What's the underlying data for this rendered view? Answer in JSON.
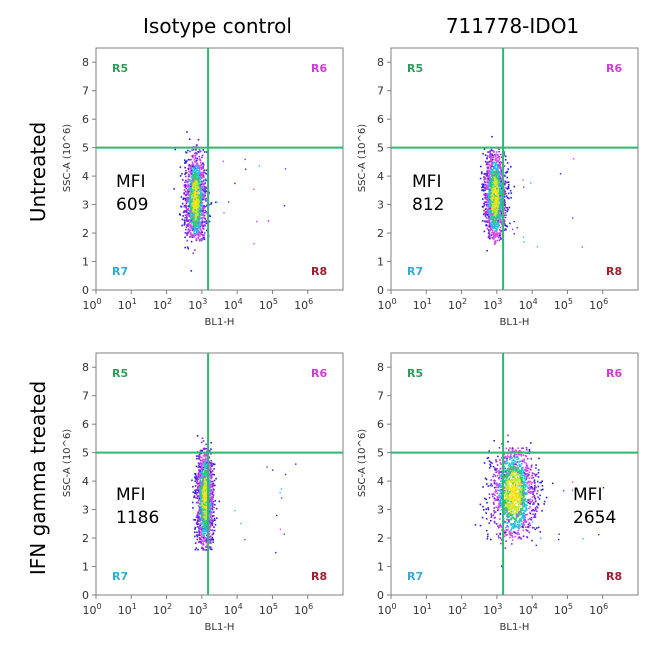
{
  "column_titles": [
    "Isotype control",
    "711778-IDO1"
  ],
  "row_titles": [
    "Untreated",
    "IFN gamma treated"
  ],
  "colors": {
    "frame": "#7f7f7f",
    "gate_line": "#2eb872",
    "R5": "#2e9e5b",
    "R6": "#d43ad8",
    "R7": "#35a8d6",
    "R8": "#a01e2d",
    "density": [
      "#2b1fd8",
      "#8a2be2",
      "#d946ef",
      "#22c3e0",
      "#2ecc71",
      "#c8e62a",
      "#ffe11a"
    ]
  },
  "chart_data": [
    {
      "type": "scatter",
      "title": "",
      "xlabel": "BL1-H",
      "ylabel": "SSC-A (10^6)",
      "x_scale": "log",
      "x_ticks": [
        "10^0",
        "10^1",
        "10^2",
        "10^3",
        "10^4",
        "10^5",
        "10^6"
      ],
      "xlim": [
        1,
        10000000
      ],
      "ylim": [
        0,
        8.5
      ],
      "y_ticks": [
        0,
        1,
        2,
        3,
        4,
        5,
        6,
        7,
        8
      ],
      "gate": {
        "x": 1500,
        "y": 5
      },
      "quadrants": [
        "R5",
        "R6",
        "R7",
        "R8"
      ],
      "annotation": {
        "label": "MFI",
        "value": "609"
      },
      "population": {
        "x_center_log10": 2.8,
        "x_spread_log10": 0.15,
        "y_center": 3.2,
        "y_spread": 0.8,
        "y_min": 1.8,
        "y_max": 5.0
      }
    },
    {
      "type": "scatter",
      "title": "",
      "xlabel": "BL1-H",
      "ylabel": "SSC-A (10^6)",
      "x_scale": "log",
      "x_ticks": [
        "10^0",
        "10^1",
        "10^2",
        "10^3",
        "10^4",
        "10^5",
        "10^6"
      ],
      "xlim": [
        1,
        10000000
      ],
      "ylim": [
        0,
        8.5
      ],
      "y_ticks": [
        0,
        1,
        2,
        3,
        4,
        5,
        6,
        7,
        8
      ],
      "gate": {
        "x": 1500,
        "y": 5
      },
      "quadrants": [
        "R5",
        "R6",
        "R7",
        "R8"
      ],
      "annotation": {
        "label": "MFI",
        "value": "812"
      },
      "population": {
        "x_center_log10": 2.93,
        "x_spread_log10": 0.15,
        "y_center": 3.3,
        "y_spread": 0.8,
        "y_min": 1.8,
        "y_max": 5.0
      }
    },
    {
      "type": "scatter",
      "title": "",
      "xlabel": "BL1-H",
      "ylabel": "SSC-A (10^6)",
      "x_scale": "log",
      "x_ticks": [
        "10^0",
        "10^1",
        "10^2",
        "10^3",
        "10^4",
        "10^5",
        "10^6"
      ],
      "xlim": [
        1,
        10000000
      ],
      "ylim": [
        0,
        8.5
      ],
      "y_ticks": [
        0,
        1,
        2,
        3,
        4,
        5,
        6,
        7,
        8
      ],
      "gate": {
        "x": 1500,
        "y": 5
      },
      "quadrants": [
        "R5",
        "R6",
        "R7",
        "R8"
      ],
      "annotation": {
        "label": "MFI",
        "value": "1186"
      },
      "population": {
        "x_center_log10": 3.07,
        "x_spread_log10": 0.12,
        "y_center": 3.4,
        "y_spread": 0.85,
        "y_min": 1.6,
        "y_max": 5.2
      }
    },
    {
      "type": "scatter",
      "title": "",
      "xlabel": "BL1-H",
      "ylabel": "SSC-A (10^6)",
      "x_scale": "log",
      "x_ticks": [
        "10^0",
        "10^1",
        "10^2",
        "10^3",
        "10^4",
        "10^5",
        "10^6"
      ],
      "xlim": [
        1,
        10000000
      ],
      "ylim": [
        0,
        8.5
      ],
      "y_ticks": [
        0,
        1,
        2,
        3,
        4,
        5,
        6,
        7,
        8
      ],
      "gate": {
        "x": 1500,
        "y": 5
      },
      "quadrants": [
        "R5",
        "R6",
        "R7",
        "R8"
      ],
      "annotation": {
        "label": "MFI",
        "value": "2654"
      },
      "population": {
        "x_center_log10": 3.45,
        "x_spread_log10": 0.32,
        "y_center": 3.6,
        "y_spread": 0.85,
        "y_min": 1.9,
        "y_max": 5.2
      }
    }
  ]
}
